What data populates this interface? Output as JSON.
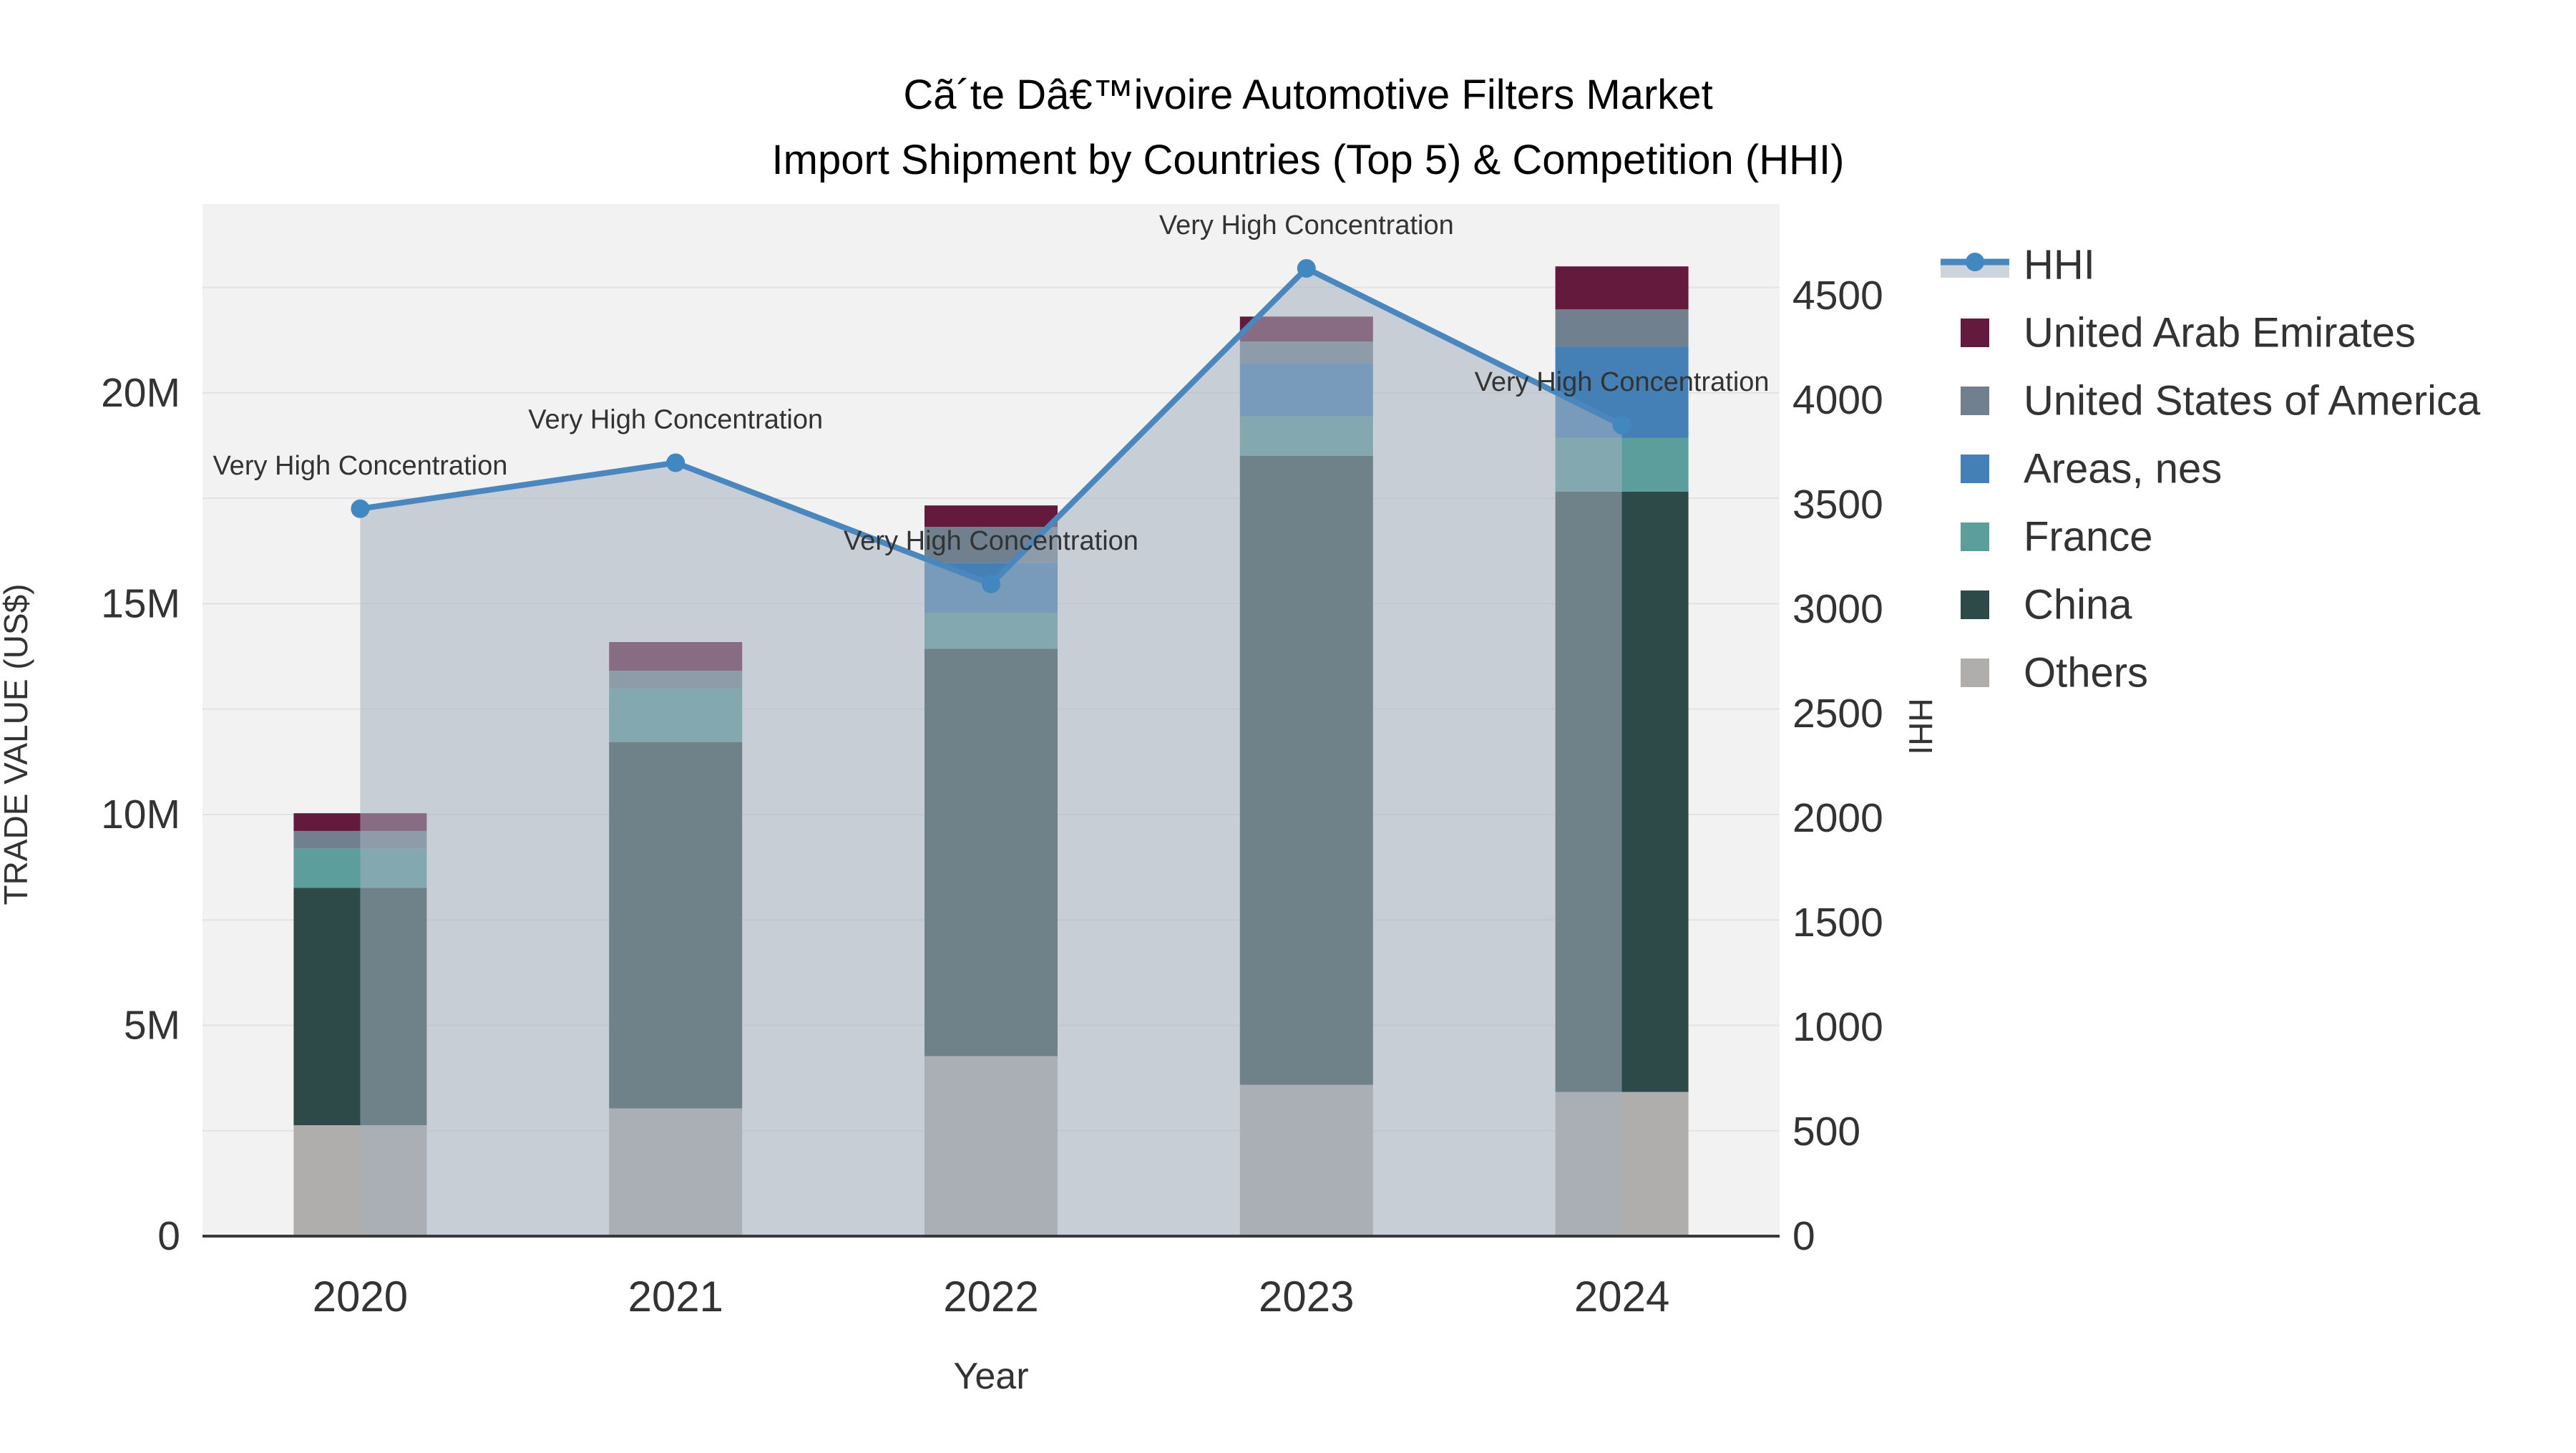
{
  "title": {
    "line1": "Cã´te Dâ€™ivoire Automotive Filters Market",
    "line2": "Import Shipment by Countries (Top 5) & Competition (HHI)"
  },
  "chart_data": {
    "type": "bar+line",
    "bar_type": "stacked",
    "categories": [
      "2020",
      "2021",
      "2022",
      "2023",
      "2024"
    ],
    "bar_value_unit": "million US$",
    "series": [
      {
        "name": "Others",
        "color": "#b0aeac",
        "values_musd": [
          2.63,
          3.03,
          4.27,
          3.59,
          3.42
        ]
      },
      {
        "name": "China",
        "color": "#2d4a49",
        "values_musd": [
          5.63,
          8.69,
          9.66,
          14.92,
          14.24
        ]
      },
      {
        "name": "France",
        "color": "#5b9e9c",
        "values_musd": [
          0.93,
          1.27,
          0.85,
          0.93,
          1.27
        ]
      },
      {
        "name": "Areas, nes",
        "color": "#4480b5",
        "values_musd": [
          0.0,
          0.0,
          1.19,
          1.27,
          2.17
        ]
      },
      {
        "name": "United States of America",
        "color": "#71808f",
        "values_musd": [
          0.42,
          0.42,
          0.85,
          0.51,
          0.88
        ]
      },
      {
        "name": "United Arab Emirates",
        "color": "#641a3c",
        "values_musd": [
          0.42,
          0.68,
          0.51,
          0.59,
          1.02
        ]
      }
    ],
    "line_series": {
      "name": "HHI",
      "values": [
        3480,
        3700,
        3120,
        4630,
        3880
      ],
      "line_color": "#4a87be",
      "marker_color": "#4187c0",
      "area_fill_color": "#a6b0c0",
      "area_fill_opacity": 0.55
    },
    "annotations": [
      {
        "x": "2020",
        "text": "Very High Concentration"
      },
      {
        "x": "2021",
        "text": "Very High Concentration"
      },
      {
        "x": "2022",
        "text": "Very High Concentration"
      },
      {
        "x": "2023",
        "text": "Very High Concentration"
      },
      {
        "x": "2024",
        "text": "Very High Concentration"
      }
    ],
    "axes": {
      "x": {
        "label": "Year",
        "ticks": [
          "2020",
          "2021",
          "2022",
          "2023",
          "2024"
        ]
      },
      "left": {
        "label": "TRADE VALUE (US$)",
        "ticks": [
          "0",
          "5M",
          "10M",
          "15M",
          "20M"
        ],
        "tick_values_musd": [
          0,
          5,
          10,
          15,
          20
        ],
        "range_musd": [
          0,
          24.48
        ]
      },
      "right": {
        "label": "HHI",
        "ticks": [
          "0",
          "500",
          "1000",
          "1500",
          "2000",
          "2500",
          "3000",
          "3500",
          "4000",
          "4500"
        ],
        "tick_values": [
          0,
          500,
          1000,
          1500,
          2000,
          2500,
          3000,
          3500,
          4000,
          4500
        ],
        "range": [
          0,
          4938
        ]
      }
    },
    "legend": {
      "position": "right",
      "items": [
        {
          "label": "HHI",
          "type": "line",
          "color": "#4a87be"
        },
        {
          "label": "United Arab Emirates",
          "type": "swatch",
          "color": "#641a3c"
        },
        {
          "label": "United States of America",
          "type": "swatch",
          "color": "#71808f"
        },
        {
          "label": "Areas, nes",
          "type": "swatch",
          "color": "#4480b5"
        },
        {
          "label": "France",
          "type": "swatch",
          "color": "#5b9e9c"
        },
        {
          "label": "China",
          "type": "swatch",
          "color": "#2d4a49"
        },
        {
          "label": "Others",
          "type": "swatch",
          "color": "#b0aeac"
        }
      ]
    },
    "grid": {
      "show": true,
      "color": "#e2e2e2",
      "interval_musd": 2.5
    },
    "plot_bg": "#f2f2f2",
    "x_axis_line_color": "#3a3a3a"
  }
}
